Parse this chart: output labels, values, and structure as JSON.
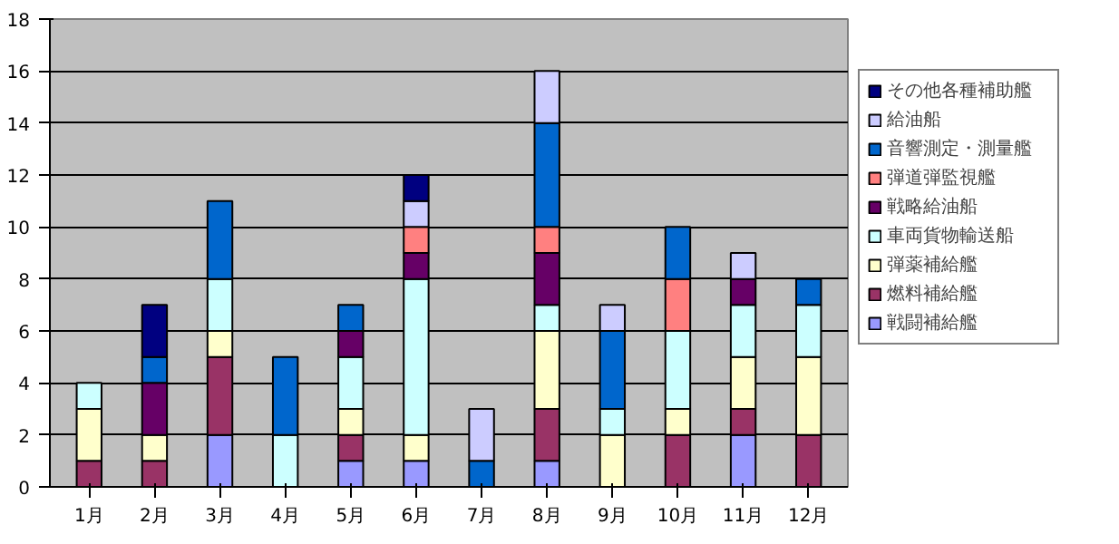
{
  "chart_data": {
    "type": "bar",
    "stacked": true,
    "categories": [
      "1月",
      "2月",
      "3月",
      "4月",
      "5月",
      "6月",
      "7月",
      "8月",
      "9月",
      "10月",
      "11月",
      "12月"
    ],
    "series": [
      {
        "name": "戦闘補給艦",
        "color": "#9999ff",
        "values": [
          0,
          0,
          2,
          0,
          1,
          1,
          0,
          1,
          0,
          0,
          2,
          0
        ]
      },
      {
        "name": "燃料補給艦",
        "color": "#993366",
        "values": [
          1,
          1,
          3,
          0,
          1,
          0,
          0,
          2,
          0,
          2,
          1,
          2
        ]
      },
      {
        "name": "弾薬補給艦",
        "color": "#ffffcc",
        "values": [
          2,
          1,
          1,
          0,
          1,
          1,
          0,
          3,
          2,
          1,
          2,
          3
        ]
      },
      {
        "name": "車両貨物輸送船",
        "color": "#ccffff",
        "values": [
          1,
          0,
          2,
          2,
          2,
          6,
          0,
          1,
          1,
          3,
          2,
          2
        ]
      },
      {
        "name": "戦略給油船",
        "color": "#660066",
        "values": [
          0,
          2,
          0,
          0,
          1,
          1,
          0,
          2,
          0,
          0,
          1,
          0
        ]
      },
      {
        "name": "弾道弾監視艦",
        "color": "#ff8080",
        "values": [
          0,
          0,
          0,
          0,
          0,
          1,
          0,
          1,
          0,
          2,
          0,
          0
        ]
      },
      {
        "name": "音響測定・測量艦",
        "color": "#0066cc",
        "values": [
          0,
          1,
          3,
          3,
          1,
          0,
          1,
          4,
          3,
          2,
          0,
          1
        ]
      },
      {
        "name": "給油船",
        "color": "#ccccff",
        "values": [
          0,
          0,
          0,
          0,
          0,
          1,
          2,
          2,
          1,
          0,
          1,
          0
        ]
      },
      {
        "name": "その他各種補助艦",
        "color": "#000080",
        "values": [
          0,
          2,
          0,
          0,
          0,
          1,
          0,
          0,
          0,
          0,
          0,
          0
        ]
      }
    ],
    "ylim": [
      0,
      18
    ],
    "yticks": [
      0,
      2,
      4,
      6,
      8,
      10,
      12,
      14,
      16,
      18
    ],
    "grid": "y",
    "legend": "right"
  }
}
